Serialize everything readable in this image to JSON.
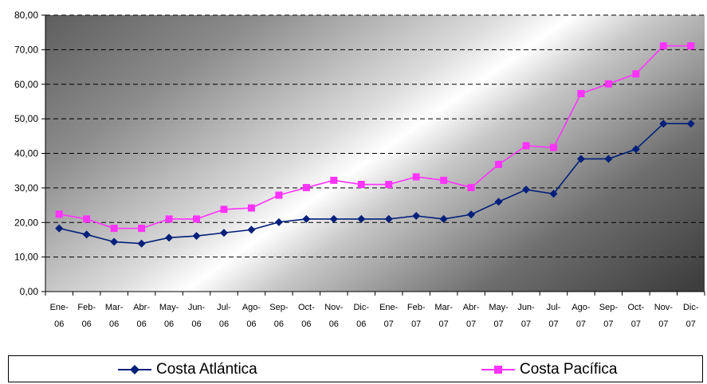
{
  "chart_data": {
    "type": "line",
    "categories": [
      "Ene-06",
      "Feb-06",
      "Mar-06",
      "Abr-06",
      "May-06",
      "Jun-06",
      "Jul-06",
      "Ago-06",
      "Sep-06",
      "Oct-06",
      "Nov-06",
      "Dic-06",
      "Ene-07",
      "Feb-07",
      "Mar-07",
      "Abr-07",
      "May-07",
      "Jun-07",
      "Jul-07",
      "Ago-07",
      "Sep-07",
      "Oct-07",
      "Nov-07",
      "Dic-07"
    ],
    "category_labels": [
      [
        "Ene-",
        "06"
      ],
      [
        "Feb-",
        "06"
      ],
      [
        "Mar-",
        "06"
      ],
      [
        "Abr-",
        "06"
      ],
      [
        "May-",
        "06"
      ],
      [
        "Jun-",
        "06"
      ],
      [
        "Jul-",
        "06"
      ],
      [
        "Ago-",
        "06"
      ],
      [
        "Sep-",
        "06"
      ],
      [
        "Oct-",
        "06"
      ],
      [
        "Nov-",
        "06"
      ],
      [
        "Dic-",
        "06"
      ],
      [
        "Ene-",
        "07"
      ],
      [
        "Feb-",
        "07"
      ],
      [
        "Mar-",
        "07"
      ],
      [
        "Abr-",
        "07"
      ],
      [
        "May-",
        "07"
      ],
      [
        "Jun-",
        "07"
      ],
      [
        "Jul-",
        "07"
      ],
      [
        "Ago-",
        "07"
      ],
      [
        "Sep-",
        "07"
      ],
      [
        "Oct-",
        "07"
      ],
      [
        "Nov-",
        "07"
      ],
      [
        "Dic-",
        "07"
      ]
    ],
    "series": [
      {
        "name": "Costa Atlántica",
        "color": "#001f7a",
        "marker": "diamond",
        "values": [
          18.3,
          16.5,
          14.4,
          13.9,
          15.6,
          16.1,
          17.0,
          17.9,
          20.1,
          21.0,
          21.0,
          21.0,
          21.0,
          21.9,
          21.0,
          22.3,
          26.0,
          29.5,
          28.3,
          38.4,
          38.4,
          41.2,
          48.6,
          48.6
        ]
      },
      {
        "name": "Costa Pacífica",
        "color": "#ff33ff",
        "marker": "square",
        "values": [
          22.4,
          21.0,
          18.3,
          18.3,
          21.0,
          21.0,
          23.8,
          24.2,
          27.9,
          30.1,
          32.2,
          31.0,
          31.0,
          33.2,
          32.2,
          30.1,
          36.8,
          42.2,
          41.7,
          57.3,
          60.1,
          63.0,
          71.1,
          71.1
        ]
      }
    ],
    "y_ticks": [
      "0,00",
      "10,00",
      "20,00",
      "30,00",
      "40,00",
      "50,00",
      "60,00",
      "70,00",
      "80,00"
    ],
    "ylim": [
      0,
      80
    ],
    "grid": "horizontal dashed",
    "legend_position": "bottom",
    "title": "",
    "xlabel": "",
    "ylabel": ""
  }
}
